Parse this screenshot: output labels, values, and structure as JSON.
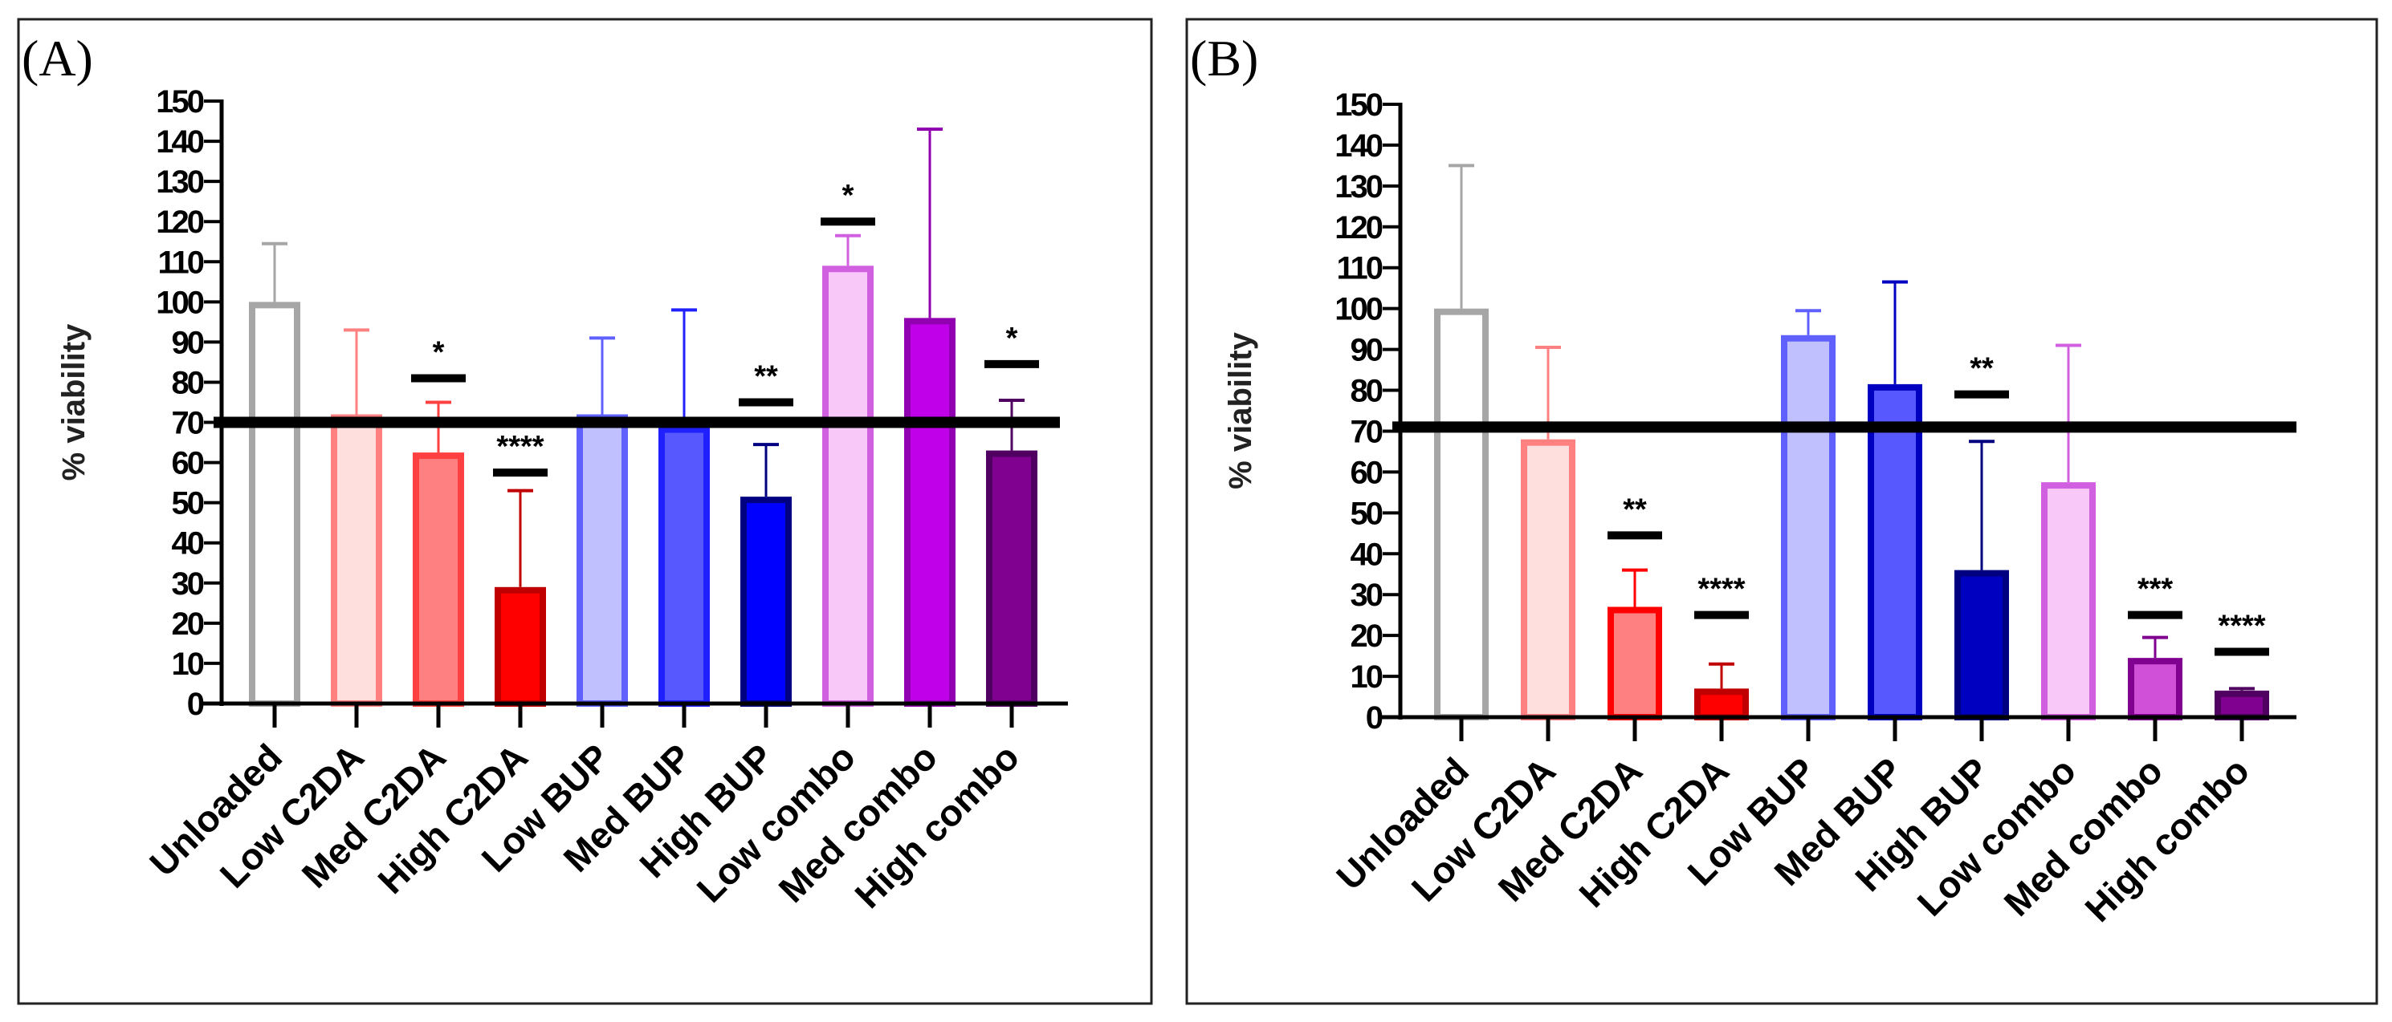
{
  "chart_data": [
    {
      "type": "bar",
      "panel_label": "(A)",
      "ylabel": "% viability",
      "ylim": [
        0,
        150
      ],
      "yticks": [
        0,
        10,
        20,
        30,
        40,
        50,
        60,
        70,
        80,
        90,
        100,
        110,
        120,
        130,
        140,
        150
      ],
      "threshold": 70,
      "categories": [
        "Unloaded",
        "Low C2DA",
        "Med C2DA",
        "High C2DA",
        "Low BUP",
        "Med BUP",
        "High BUP",
        "Low combo",
        "Med combo",
        "High combo"
      ],
      "values": [
        100,
        72,
        62.5,
        29,
        72,
        69,
        51.5,
        109,
        96,
        63
      ],
      "error_top": [
        114.5,
        93,
        75,
        53,
        91,
        98,
        64.5,
        116.5,
        143,
        75.5
      ],
      "fills": [
        "#ffffff",
        "#ffdede",
        "#ff8080",
        "#ff0000",
        "#c0c0ff",
        "#5858ff",
        "#0000ff",
        "#f8c8f8",
        "#c000e8",
        "#800090"
      ],
      "strokes": [
        "#a6a6a6",
        "#ff8080",
        "#ff4040",
        "#c00000",
        "#6060ff",
        "#2020ff",
        "#000080",
        "#d060e0",
        "#9000b0",
        "#500060"
      ],
      "significance": [
        {
          "index": 2,
          "label": "*",
          "level": 81
        },
        {
          "index": 3,
          "label": "****",
          "level": 57.5
        },
        {
          "index": 6,
          "label": "**",
          "level": 75
        },
        {
          "index": 7,
          "label": "*",
          "level": 120
        },
        {
          "index": 9,
          "label": "*",
          "level": 84.5
        }
      ]
    },
    {
      "type": "bar",
      "panel_label": "(B)",
      "ylabel": "% viability",
      "ylim": [
        0,
        150
      ],
      "yticks": [
        0,
        10,
        20,
        30,
        40,
        50,
        60,
        70,
        80,
        90,
        100,
        110,
        120,
        130,
        140,
        150
      ],
      "threshold": 71,
      "categories": [
        "Unloaded",
        "Low C2DA",
        "Med C2DA",
        "High C2DA",
        "Low BUP",
        "Med BUP",
        "High BUP",
        "Low combo",
        "Med combo",
        "High combo"
      ],
      "values": [
        100,
        68,
        27,
        7,
        93.5,
        81.5,
        36,
        57.5,
        14.5,
        6.5
      ],
      "error_top": [
        135,
        90.5,
        36,
        13,
        99.5,
        106.5,
        67.5,
        91,
        19.5,
        7
      ],
      "fills": [
        "#ffffff",
        "#ffdede",
        "#ff8080",
        "#ff0000",
        "#c0c0ff",
        "#5858ff",
        "#0000c0",
        "#f8c8f8",
        "#d050d8",
        "#800090"
      ],
      "strokes": [
        "#a6a6a6",
        "#ff8080",
        "#ff0000",
        "#c00000",
        "#6060ff",
        "#0000c0",
        "#000080",
        "#d060e0",
        "#800090",
        "#500060"
      ],
      "significance": [
        {
          "index": 2,
          "label": "**",
          "level": 44.5
        },
        {
          "index": 3,
          "label": "****",
          "level": 25
        },
        {
          "index": 6,
          "label": "**",
          "level": 79
        },
        {
          "index": 8,
          "label": "***",
          "level": 25
        },
        {
          "index": 9,
          "label": "****",
          "level": 16
        }
      ]
    }
  ]
}
